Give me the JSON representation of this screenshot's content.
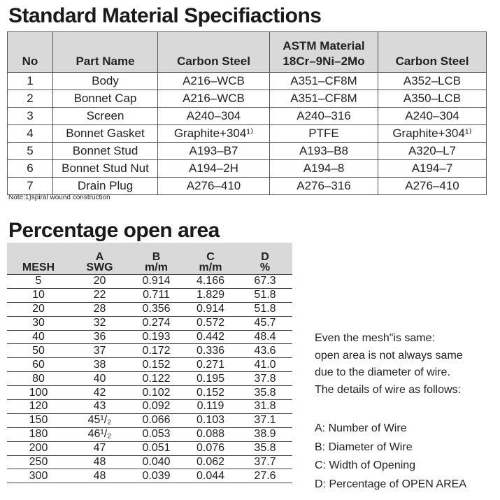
{
  "spec": {
    "title": "Standard Material Specifiactions",
    "header": [
      [
        "No"
      ],
      [
        "Part Name"
      ],
      [
        "Carbon Steel"
      ],
      [
        "ASTM Material",
        "18Cr–9Ni–2Mo"
      ],
      [
        "Carbon Steel"
      ]
    ],
    "rows": [
      [
        "1",
        "Body",
        "A216–WCB",
        "A351–CF8M",
        "A352–LCB"
      ],
      [
        "2",
        "Bonnet Cap",
        "A216–WCB",
        "A351–CF8M",
        "A350–LCB"
      ],
      [
        "3",
        "Screen",
        "A240–304",
        "A240–316",
        "A240–304"
      ],
      [
        "4",
        "Bonnet Gasket",
        "Graphite+304¹⁾",
        "PTFE",
        "Graphite+304¹⁾"
      ],
      [
        "5",
        "Bonnet Stud",
        "A193–B7",
        "A193–B8",
        "A320–L7"
      ],
      [
        "6",
        "Bonnet Stud Nut",
        "A194–2H",
        "A194–8",
        "A194–7"
      ],
      [
        "7",
        "Drain Plug",
        "A276–410",
        "A276–316",
        "A276–410"
      ]
    ],
    "note": "Note:1)spiral wound construction"
  },
  "open_area": {
    "title": "Percentage open area",
    "header": [
      [
        "MESH"
      ],
      [
        "A",
        "SWG"
      ],
      [
        "B",
        "m/m"
      ],
      [
        "C",
        "m/m"
      ],
      [
        "D",
        "%"
      ]
    ],
    "rows": [
      [
        "5",
        "20",
        "0.914",
        "4.166",
        "67.3"
      ],
      [
        "10",
        "22",
        "0.711",
        "1.829",
        "51.8"
      ],
      [
        "20",
        "28",
        "0.356",
        "0.914",
        "51.8"
      ],
      [
        "30",
        "32",
        "0.274",
        "0.572",
        "45.7"
      ],
      [
        "40",
        "36",
        "0.193",
        "0.442",
        "48.4"
      ],
      [
        "50",
        "37",
        "0.172",
        "0.336",
        "43.6"
      ],
      [
        "60",
        "38",
        "0.152",
        "0.271",
        "41.0"
      ],
      [
        "80",
        "40",
        "0.122",
        "0.195",
        "37.8"
      ],
      [
        "100",
        "42",
        "0.102",
        "0.152",
        "35.8"
      ],
      [
        "120",
        "43",
        "0.092",
        "0.119",
        "31.8"
      ],
      [
        "150",
        "45¹/₂",
        "0.066",
        "0.103",
        "37.1"
      ],
      [
        "180",
        "46¹/₂",
        "0.053",
        "0.088",
        "38.9"
      ],
      [
        "200",
        "47",
        "0.051",
        "0.076",
        "35.8"
      ],
      [
        "250",
        "48",
        "0.040",
        "0.062",
        "37.7"
      ],
      [
        "300",
        "48",
        "0.039",
        "0.044",
        "27.6"
      ]
    ]
  },
  "explanation": {
    "intro": [
      "Even the mesh\"is same:",
      "open area is not always same",
      "due to the diameter of wire.",
      "The details of wire as follows:"
    ],
    "legend": [
      "A: Number of Wire",
      "B: Diameter of Wire",
      "C: Width of Opening",
      "D: Percentage of OPEN AREA"
    ]
  }
}
